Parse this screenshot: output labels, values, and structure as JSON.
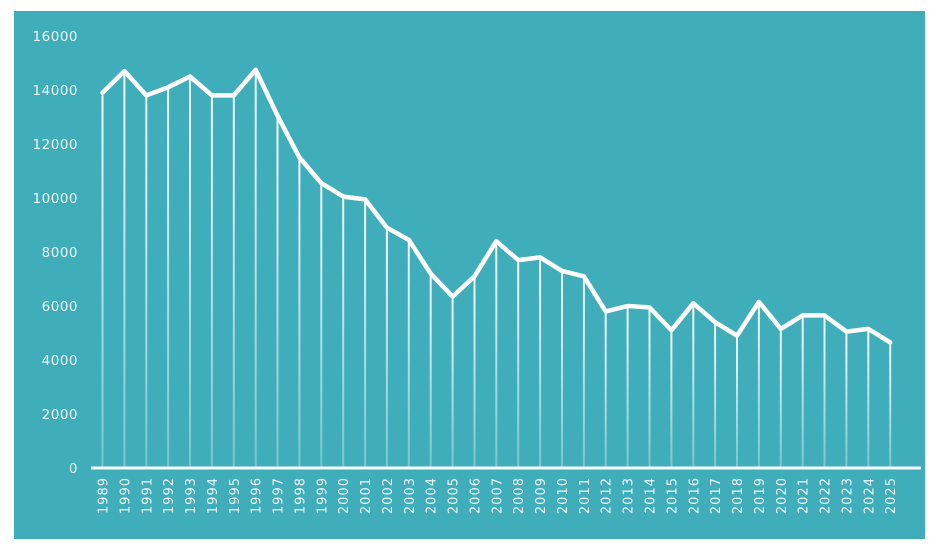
{
  "chart_data": {
    "type": "line",
    "title": "",
    "xlabel": "",
    "ylabel": "",
    "x": [
      "1989",
      "1990",
      "1991",
      "1992",
      "1993",
      "1994",
      "1995",
      "1996",
      "1997",
      "1998",
      "1999",
      "2000",
      "2001",
      "2002",
      "2003",
      "2004",
      "2005",
      "2006",
      "2007",
      "2008",
      "2009",
      "2010",
      "2011",
      "2012",
      "2013",
      "2014",
      "2015",
      "2016",
      "2017",
      "2018",
      "2019",
      "2020",
      "2021",
      "2022",
      "2023",
      "2024",
      "2025"
    ],
    "values": [
      13900,
      14700,
      13800,
      14100,
      14500,
      13800,
      13800,
      14750,
      13050,
      11500,
      10550,
      10050,
      9950,
      8900,
      8450,
      7200,
      6350,
      7100,
      8400,
      7700,
      7800,
      7300,
      7100,
      5800,
      6000,
      5950,
      5100,
      6100,
      5400,
      4900,
      6150,
      5150,
      5650,
      5650,
      5050,
      5150,
      4650
    ],
    "ylim": [
      0,
      16000
    ],
    "yticks": [
      0,
      2000,
      4000,
      6000,
      8000,
      10000,
      12000,
      14000,
      16000
    ],
    "grid": false,
    "legend": "none",
    "marker_drop_lines": true,
    "x_label_rotation": -90
  },
  "style": {
    "page_background": "#ffffff",
    "panel_background": "#40adbb",
    "line_color": "#ffffff",
    "drop_line_color": "#ffffff",
    "axis_line_color": "#f6fbfc",
    "tick_label_color": "#eef8f9"
  }
}
